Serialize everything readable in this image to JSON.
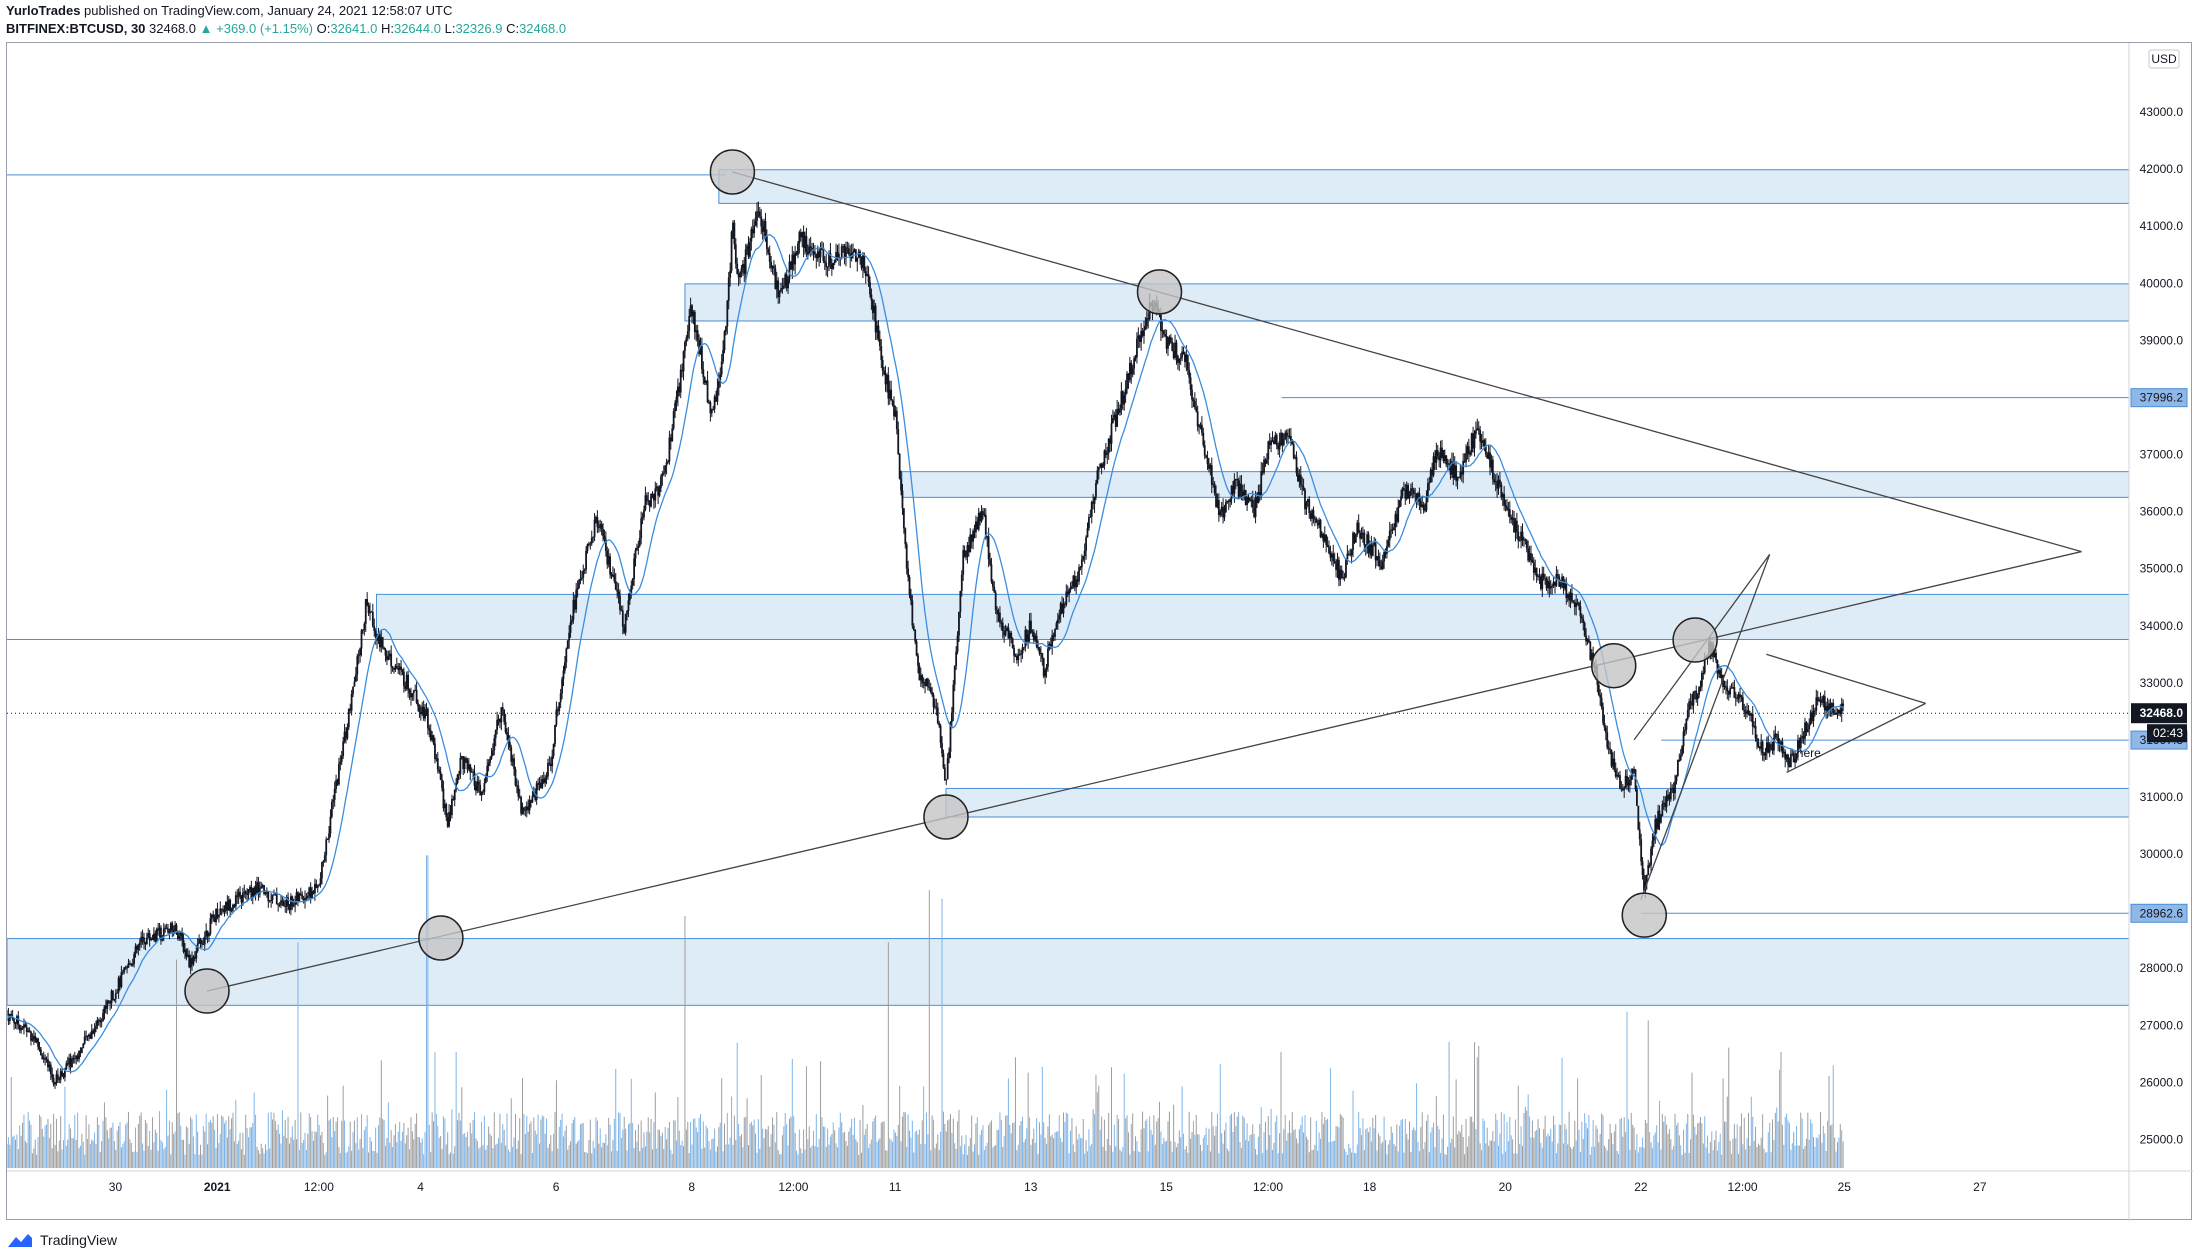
{
  "header": {
    "author": "YurloTrades",
    "published": " published on TradingView.com, January 24, 2021 12:58:07 UTC",
    "symbol": "BITFINEX:BTCUSD, 30",
    "last": "32468.0",
    "change": "▲ +369.0 (+1.15%)",
    "open_label": "O:",
    "open": "32641.0",
    "high_label": "H:",
    "high": "32644.0",
    "low_label": "L:",
    "low": "32326.9",
    "close_label": "C:",
    "close": "32468.0"
  },
  "footer": {
    "brand": "TradingView"
  },
  "colors": {
    "zone_fill": "#deecf8",
    "zone_line": "#4a8ed6",
    "ma": "#3a8ee0",
    "candle": "#131722",
    "trend": "#444444",
    "marker_fill": "#c4c4c4",
    "volume": "#7fb4e8"
  },
  "chart_data": {
    "type": "candlestick",
    "symbol": "BITFINEX:BTCUSD",
    "timeframe": "30",
    "currency": "USD",
    "ylim": [
      24500,
      44000
    ],
    "y_ticks": [
      25000,
      26000,
      27000,
      28000,
      29000,
      30000,
      31000,
      32000,
      33000,
      34000,
      35000,
      36000,
      37000,
      38000,
      39000,
      40000,
      41000,
      42000,
      43000
    ],
    "y_tick_labels": [
      "25000.0",
      "26000.0",
      "27000.0",
      "28000.0",
      "29000.0",
      "30000.0",
      "31000.0",
      "32000.0",
      "33000.0",
      "34000.0",
      "35000.0",
      "36000.0",
      "37000.0",
      "38000.0",
      "39000.0",
      "40000.0",
      "41000.0",
      "42000.0",
      "43000.0"
    ],
    "xlim_days": [
      -3.1,
      28.2
    ],
    "x_ticks": [
      {
        "label": "30",
        "day": -1.5,
        "bold": false
      },
      {
        "label": "2021",
        "day": 0.0,
        "bold": true
      },
      {
        "label": "12:00",
        "day": 1.5,
        "bold": false
      },
      {
        "label": "4",
        "day": 3.0,
        "bold": false
      },
      {
        "label": "6",
        "day": 5.0,
        "bold": false
      },
      {
        "label": "8",
        "day": 7.0,
        "bold": false
      },
      {
        "label": "12:00",
        "day": 8.5,
        "bold": false
      },
      {
        "label": "11",
        "day": 10.0,
        "bold": false
      },
      {
        "label": "13",
        "day": 12.0,
        "bold": false
      },
      {
        "label": "15",
        "day": 14.0,
        "bold": false
      },
      {
        "label": "12:00",
        "day": 15.5,
        "bold": false
      },
      {
        "label": "18",
        "day": 17.0,
        "bold": false
      },
      {
        "label": "20",
        "day": 19.0,
        "bold": false
      },
      {
        "label": "22",
        "day": 21.0,
        "bold": false
      },
      {
        "label": "12:00",
        "day": 22.5,
        "bold": false
      },
      {
        "label": "25",
        "day": 24.0,
        "bold": false
      },
      {
        "label": "27",
        "day": 26.0,
        "bold": false
      }
    ],
    "price_path": [
      [
        -3.1,
        27200
      ],
      [
        -2.7,
        26800
      ],
      [
        -2.4,
        26000
      ],
      [
        -2.0,
        26600
      ],
      [
        -1.6,
        27400
      ],
      [
        -1.1,
        28500
      ],
      [
        -0.6,
        28700
      ],
      [
        -0.4,
        28100
      ],
      [
        0.0,
        29000
      ],
      [
        0.6,
        29400
      ],
      [
        1.0,
        29100
      ],
      [
        1.5,
        29400
      ],
      [
        1.75,
        31200
      ],
      [
        2.0,
        32800
      ],
      [
        2.2,
        34400
      ],
      [
        2.4,
        33700
      ],
      [
        2.8,
        33000
      ],
      [
        3.1,
        32400
      ],
      [
        3.3,
        31200
      ],
      [
        3.4,
        30500
      ],
      [
        3.6,
        31700
      ],
      [
        3.9,
        31000
      ],
      [
        4.2,
        32600
      ],
      [
        4.5,
        30700
      ],
      [
        4.9,
        31500
      ],
      [
        5.2,
        34100
      ],
      [
        5.6,
        35900
      ],
      [
        6.0,
        34000
      ],
      [
        6.3,
        36100
      ],
      [
        6.6,
        36600
      ],
      [
        7.0,
        39600
      ],
      [
        7.3,
        37600
      ],
      [
        7.5,
        39200
      ],
      [
        7.6,
        41000
      ],
      [
        7.7,
        40000
      ],
      [
        8.0,
        41300
      ],
      [
        8.3,
        39700
      ],
      [
        8.6,
        40800
      ],
      [
        9.0,
        40400
      ],
      [
        9.4,
        40600
      ],
      [
        9.6,
        40200
      ],
      [
        9.8,
        38600
      ],
      [
        10.0,
        37700
      ],
      [
        10.2,
        34600
      ],
      [
        10.35,
        33200
      ],
      [
        10.6,
        32600
      ],
      [
        10.75,
        31200
      ],
      [
        11.0,
        35200
      ],
      [
        11.3,
        36000
      ],
      [
        11.5,
        34200
      ],
      [
        11.8,
        33500
      ],
      [
        12.0,
        34000
      ],
      [
        12.2,
        33200
      ],
      [
        12.4,
        34200
      ],
      [
        12.7,
        34900
      ],
      [
        13.0,
        36700
      ],
      [
        13.4,
        38200
      ],
      [
        13.6,
        39000
      ],
      [
        13.8,
        39700
      ],
      [
        14.0,
        39000
      ],
      [
        14.3,
        38600
      ],
      [
        14.5,
        37400
      ],
      [
        14.8,
        35900
      ],
      [
        15.0,
        36500
      ],
      [
        15.3,
        36000
      ],
      [
        15.5,
        37100
      ],
      [
        15.8,
        37400
      ],
      [
        16.0,
        36300
      ],
      [
        16.3,
        35600
      ],
      [
        16.6,
        34800
      ],
      [
        16.8,
        35700
      ],
      [
        17.2,
        35100
      ],
      [
        17.5,
        36400
      ],
      [
        17.8,
        36100
      ],
      [
        18.0,
        37100
      ],
      [
        18.3,
        36600
      ],
      [
        18.6,
        37500
      ],
      [
        18.9,
        36400
      ],
      [
        19.2,
        35600
      ],
      [
        19.5,
        34800
      ],
      [
        19.8,
        34800
      ],
      [
        20.1,
        34200
      ],
      [
        20.3,
        33300
      ],
      [
        20.5,
        31900
      ],
      [
        20.7,
        31200
      ],
      [
        20.9,
        31400
      ],
      [
        21.05,
        29300
      ],
      [
        21.2,
        30500
      ],
      [
        21.5,
        31200
      ],
      [
        21.7,
        32600
      ],
      [
        21.85,
        32900
      ],
      [
        22.0,
        33700
      ],
      [
        22.2,
        33000
      ],
      [
        22.4,
        32800
      ],
      [
        22.6,
        32400
      ],
      [
        22.8,
        31800
      ],
      [
        23.0,
        32000
      ],
      [
        23.2,
        31600
      ],
      [
        23.4,
        32100
      ],
      [
        23.6,
        32700
      ],
      [
        23.8,
        32600
      ],
      [
        24.0,
        32470
      ]
    ],
    "ma_lag_days": 0.35,
    "last_price": 32468.0,
    "countdown": "02:43",
    "price_labels": [
      {
        "price": 37996.2,
        "label": "37996.2"
      },
      {
        "price": 31997.3,
        "label": "31997.3"
      },
      {
        "price": 28962.6,
        "label": "28962.6"
      }
    ],
    "zones": [
      {
        "top": 41990,
        "bottom": 41400,
        "x0": 7.4,
        "x1": 28.2
      },
      {
        "top": 39990,
        "bottom": 39340,
        "x0": 6.9,
        "x1": 28.2
      },
      {
        "top": 36700,
        "bottom": 36250,
        "x0": 10.1,
        "x1": 28.2
      },
      {
        "top": 34550,
        "bottom": 33760,
        "x0": 2.35,
        "x1": 28.2
      },
      {
        "top": 31150,
        "bottom": 30650,
        "x0": 10.75,
        "x1": 28.2
      },
      {
        "top": 28520,
        "bottom": 27350,
        "x0": -3.1,
        "x1": 28.2
      }
    ],
    "h_lines": [
      {
        "price": 41900,
        "x0": -3.1,
        "x1": 7.5
      },
      {
        "price": 33760,
        "x0": -3.1,
        "x1": 28.2
      },
      {
        "price": 37996.2,
        "x0": 15.7,
        "x1": 28.2
      },
      {
        "price": 31997.3,
        "x0": 21.3,
        "x1": 28.2
      },
      {
        "price": 28962.6,
        "x0": 21.0,
        "x1": 28.2
      }
    ],
    "trend_lines": [
      [
        [
          7.6,
          41950
        ],
        [
          27.5,
          35300
        ]
      ],
      [
        [
          -0.15,
          27600
        ],
        [
          27.5,
          35300
        ]
      ],
      [
        [
          20.9,
          32000
        ],
        [
          22.9,
          35250
        ]
      ],
      [
        [
          21.0,
          29200
        ],
        [
          22.9,
          35250
        ]
      ],
      [
        [
          22.85,
          33500
        ],
        [
          25.2,
          32640
        ]
      ],
      [
        [
          23.15,
          31430
        ],
        [
          25.2,
          32640
        ]
      ]
    ],
    "markers": [
      {
        "day": 7.6,
        "price": 41950
      },
      {
        "day": -0.15,
        "price": 27600
      },
      {
        "day": 3.3,
        "price": 28530
      },
      {
        "day": 10.75,
        "price": 30650
      },
      {
        "day": 13.9,
        "price": 39850
      },
      {
        "day": 20.6,
        "price": 33300
      },
      {
        "day": 21.05,
        "price": 28930
      },
      {
        "day": 21.8,
        "price": 33750
      }
    ],
    "annotations": [
      {
        "text": "here",
        "day": 23.3,
        "price": 31770
      }
    ],
    "volume": {
      "max": 3800,
      "spikes": [
        [
          -0.6,
          2400
        ],
        [
          1.2,
          2600
        ],
        [
          3.1,
          3600
        ],
        [
          6.9,
          2900
        ],
        [
          9.9,
          2600
        ],
        [
          10.5,
          3200
        ],
        [
          10.7,
          3100
        ],
        [
          20.8,
          1800
        ],
        [
          21.1,
          1700
        ]
      ]
    }
  }
}
